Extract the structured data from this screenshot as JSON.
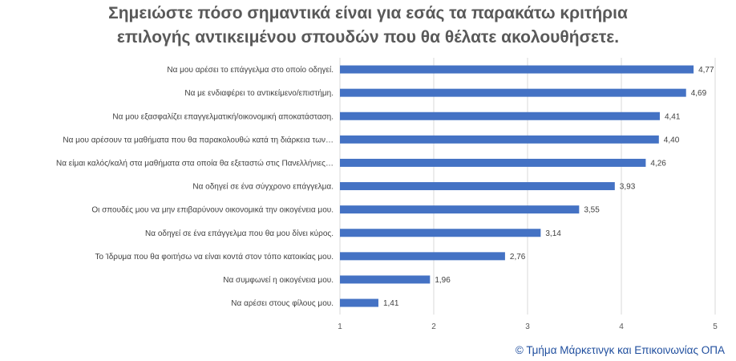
{
  "title": {
    "line1": "Σημειώστε πόσο σημαντικά είναι για εσάς τα παρακάτω κριτήρια",
    "line2": "επιλογής αντικειμένου σπουδών που θα θέλατε ακολουθήσετε."
  },
  "footer": "© Τμήμα Μάρκετινγκ και Επικοινωνίας ΟΠΑ",
  "colors": {
    "bar": "#4472c4",
    "grid": "#d9d9d9",
    "text": "#404040",
    "title": "#595959",
    "footer": "#1f4e9e"
  },
  "chart_data": {
    "type": "bar",
    "orientation": "horizontal",
    "categories": [
      "Να μου αρέσει το επάγγελμα στο οποίο οδηγεί.",
      "Να με ενδιαφέρει το αντικείμενο/επιστήμη.",
      "Να μου εξασφαλίζει επαγγελματική/οικονομική αποκατάσταση.",
      "Να μου αρέσουν τα μαθήματα που θα παρακολουθώ κατά τη διάρκεια των…",
      "Να είμαι καλός/καλή στα μαθήματα στα οποία θα εξεταστώ στις Πανελλήνιες…",
      "Να οδηγεί σε ένα σύγχρονο επάγγελμα.",
      "Οι σπουδές μου να μην επιβαρύνουν οικονομικά την οικογένεια μου.",
      "Να οδηγεί σε ένα επάγγελμα που θα μου δίνει κύρος.",
      "Το Ίδρυμα που θα φοιτήσω να είναι κοντά στον τόπο κατοικίας μου.",
      "Να συμφωνεί η οικογένεια μου.",
      "Να αρέσει στους φίλους μου."
    ],
    "values": [
      4.77,
      4.69,
      4.41,
      4.4,
      4.26,
      3.93,
      3.55,
      3.14,
      2.76,
      1.96,
      1.41
    ],
    "data_labels": [
      "4,77",
      "4,69",
      "4,41",
      "4,40",
      "4,26",
      "3,93",
      "3,55",
      "3,14",
      "2,76",
      "1,96",
      "1,41"
    ],
    "xlim": [
      1,
      5
    ],
    "xticks": [
      "1",
      "2",
      "3",
      "4",
      "5"
    ],
    "grid": true
  }
}
